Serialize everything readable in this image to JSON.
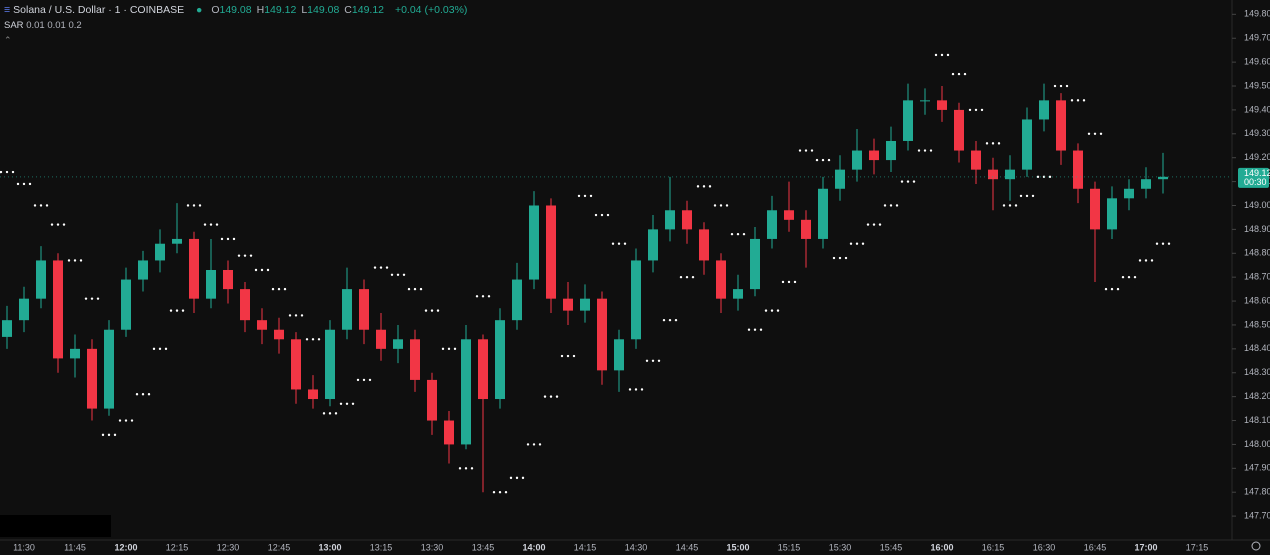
{
  "header": {
    "symbol": "Solana / U.S. Dollar · 1 · COINBASE",
    "ohlc": [
      {
        "label": "O",
        "value": 149.08
      },
      {
        "label": "H",
        "value": 149.12
      },
      {
        "label": "L",
        "value": 149.08
      },
      {
        "label": "C",
        "value": 149.12
      }
    ],
    "change": "+0.04",
    "change_pct": "(+0.03%)"
  },
  "chart_data": {
    "type": "candlestick",
    "x": [
      "11:25",
      "11:30",
      "11:35",
      "11:40",
      "11:45",
      "11:50",
      "11:55",
      "12:00",
      "12:05",
      "12:10",
      "12:15",
      "12:20",
      "12:25",
      "12:30",
      "12:35",
      "12:40",
      "12:45",
      "12:50",
      "12:55",
      "13:00",
      "13:05",
      "13:10",
      "13:15",
      "13:20",
      "13:25",
      "13:30",
      "13:35",
      "13:40",
      "13:45",
      "13:50",
      "13:55",
      "14:00",
      "14:05",
      "14:10",
      "14:15",
      "14:20",
      "14:25",
      "14:30",
      "14:35",
      "14:40",
      "14:45",
      "14:50",
      "14:55",
      "15:00",
      "15:05",
      "15:10",
      "15:15",
      "15:20",
      "15:25",
      "15:30",
      "15:35",
      "15:40",
      "15:45",
      "15:50",
      "15:55",
      "16:00",
      "16:05",
      "16:10",
      "16:15",
      "16:20",
      "16:25",
      "16:30",
      "16:35",
      "16:40",
      "16:45",
      "16:50",
      "16:55",
      "17:00",
      "17:05"
    ],
    "open": [
      148.45,
      148.52,
      148.61,
      148.77,
      148.36,
      148.4,
      148.15,
      148.48,
      148.69,
      148.77,
      148.84,
      148.86,
      148.61,
      148.73,
      148.65,
      148.52,
      148.48,
      148.44,
      148.23,
      148.19,
      148.48,
      148.65,
      148.48,
      148.4,
      148.44,
      148.27,
      148.1,
      148.0,
      148.44,
      148.19,
      148.52,
      148.69,
      149.0,
      148.61,
      148.56,
      148.61,
      148.31,
      148.44,
      148.77,
      148.9,
      148.98,
      148.9,
      148.77,
      148.61,
      148.65,
      148.86,
      148.98,
      148.94,
      148.86,
      149.07,
      149.15,
      149.23,
      149.19,
      149.27,
      149.44,
      149.44,
      149.4,
      149.23,
      149.15,
      149.11,
      149.15,
      149.36,
      149.44,
      149.23,
      149.07,
      148.9,
      149.03,
      149.07,
      149.11
    ],
    "high": [
      148.58,
      148.66,
      148.83,
      148.8,
      148.46,
      148.44,
      148.52,
      148.74,
      148.81,
      148.9,
      149.01,
      148.89,
      148.86,
      148.77,
      148.68,
      148.57,
      148.53,
      148.47,
      148.29,
      148.52,
      148.74,
      148.69,
      148.55,
      148.5,
      148.48,
      148.3,
      148.14,
      148.5,
      148.46,
      148.57,
      148.76,
      149.06,
      149.03,
      148.68,
      148.67,
      148.64,
      148.48,
      148.82,
      148.96,
      149.12,
      149.02,
      148.93,
      148.8,
      148.71,
      148.91,
      149.04,
      149.1,
      148.98,
      149.12,
      149.21,
      149.32,
      149.28,
      149.33,
      149.51,
      149.49,
      149.5,
      149.43,
      149.27,
      149.2,
      149.21,
      149.41,
      149.51,
      149.47,
      149.26,
      149.1,
      149.08,
      149.11,
      149.16,
      149.22
    ],
    "low": [
      148.4,
      148.47,
      148.57,
      148.3,
      148.28,
      148.1,
      148.12,
      148.45,
      148.64,
      148.72,
      148.8,
      148.55,
      148.57,
      148.59,
      148.47,
      148.42,
      148.38,
      148.17,
      148.15,
      148.16,
      148.44,
      148.42,
      148.35,
      148.34,
      148.22,
      148.04,
      147.92,
      147.98,
      147.8,
      148.15,
      148.48,
      148.65,
      148.55,
      148.5,
      148.51,
      148.25,
      148.22,
      148.4,
      148.72,
      148.85,
      148.84,
      148.71,
      148.55,
      148.56,
      148.62,
      148.82,
      148.89,
      148.74,
      148.82,
      149.02,
      149.1,
      149.13,
      149.14,
      149.23,
      149.38,
      149.35,
      149.18,
      149.09,
      148.98,
      149.02,
      149.12,
      149.31,
      149.17,
      149.01,
      148.68,
      148.86,
      148.98,
      149.03,
      149.05
    ],
    "close": [
      148.52,
      148.61,
      148.77,
      148.36,
      148.4,
      148.15,
      148.48,
      148.69,
      148.77,
      148.84,
      148.86,
      148.61,
      148.73,
      148.65,
      148.52,
      148.48,
      148.44,
      148.23,
      148.19,
      148.48,
      148.65,
      148.48,
      148.4,
      148.44,
      148.27,
      148.1,
      148.0,
      148.44,
      148.19,
      148.52,
      148.69,
      149.0,
      148.61,
      148.56,
      148.61,
      148.31,
      148.44,
      148.77,
      148.9,
      148.98,
      148.9,
      148.77,
      148.61,
      148.65,
      148.86,
      148.98,
      148.94,
      148.86,
      149.07,
      149.15,
      149.23,
      149.19,
      149.27,
      149.44,
      149.44,
      149.4,
      149.23,
      149.15,
      149.11,
      149.15,
      149.36,
      149.44,
      149.23,
      149.07,
      148.9,
      149.03,
      149.07,
      149.11,
      149.12
    ],
    "up_color": "#22ab94",
    "down_color": "#f23645",
    "sar": {
      "name": "SAR",
      "params": "0.01 0.01 0.2",
      "color": "#ffffff",
      "values": [
        149.14,
        149.09,
        149.0,
        148.92,
        148.77,
        148.61,
        148.04,
        148.1,
        148.21,
        148.4,
        148.56,
        149.0,
        148.92,
        148.86,
        148.79,
        148.73,
        148.65,
        148.54,
        148.44,
        148.13,
        148.17,
        148.27,
        148.74,
        148.71,
        148.65,
        148.56,
        148.4,
        147.9,
        148.62,
        147.8,
        147.86,
        148.0,
        148.2,
        148.37,
        149.04,
        148.96,
        148.84,
        148.23,
        148.35,
        148.52,
        148.7,
        149.08,
        149.0,
        148.88,
        148.48,
        148.56,
        148.68,
        149.23,
        149.19,
        148.78,
        148.84,
        148.92,
        149.0,
        149.1,
        149.23,
        149.63,
        149.55,
        149.4,
        149.26,
        149.0,
        149.04,
        149.12,
        149.5,
        149.44,
        149.3,
        148.65,
        148.7,
        148.77,
        148.84
      ]
    },
    "ylim": [
      147.6,
      149.86
    ],
    "yticks": [
      {
        "value": 147.7,
        "label": "147.70"
      },
      {
        "value": 147.8,
        "label": "147.80"
      },
      {
        "value": 147.9,
        "label": "147.90"
      },
      {
        "value": 148.0,
        "label": "148.00"
      },
      {
        "value": 148.1,
        "label": "148.10"
      },
      {
        "value": 148.2,
        "label": "148.20"
      },
      {
        "value": 148.3,
        "label": "148.30"
      },
      {
        "value": 148.4,
        "label": "148.40"
      },
      {
        "value": 148.5,
        "label": "148.50"
      },
      {
        "value": 148.6,
        "label": "148.60"
      },
      {
        "value": 148.7,
        "label": "148.70"
      },
      {
        "value": 148.8,
        "label": "148.80"
      },
      {
        "value": 148.9,
        "label": "148.90"
      },
      {
        "value": 149.0,
        "label": "149.00"
      },
      {
        "value": 149.1,
        "label": "149.10"
      },
      {
        "value": 149.2,
        "label": "149.20"
      },
      {
        "value": 149.3,
        "label": "149.30"
      },
      {
        "value": 149.4,
        "label": "149.40"
      },
      {
        "value": 149.5,
        "label": "149.50"
      },
      {
        "value": 149.6,
        "label": "149.60"
      },
      {
        "value": 149.7,
        "label": "149.70"
      },
      {
        "value": 149.8,
        "label": "149.80"
      }
    ],
    "xticks": [
      "11:30",
      "11:45",
      "12:00",
      "12:15",
      "12:30",
      "12:45",
      "13:00",
      "13:15",
      "13:30",
      "13:45",
      "14:00",
      "14:15",
      "14:30",
      "14:45",
      "15:00",
      "15:15",
      "15:30",
      "15:45",
      "16:00",
      "16:15",
      "16:30",
      "16:45",
      "17:00",
      "17:15"
    ],
    "last_price": {
      "value": 149.12,
      "countdown": "00:30"
    }
  }
}
